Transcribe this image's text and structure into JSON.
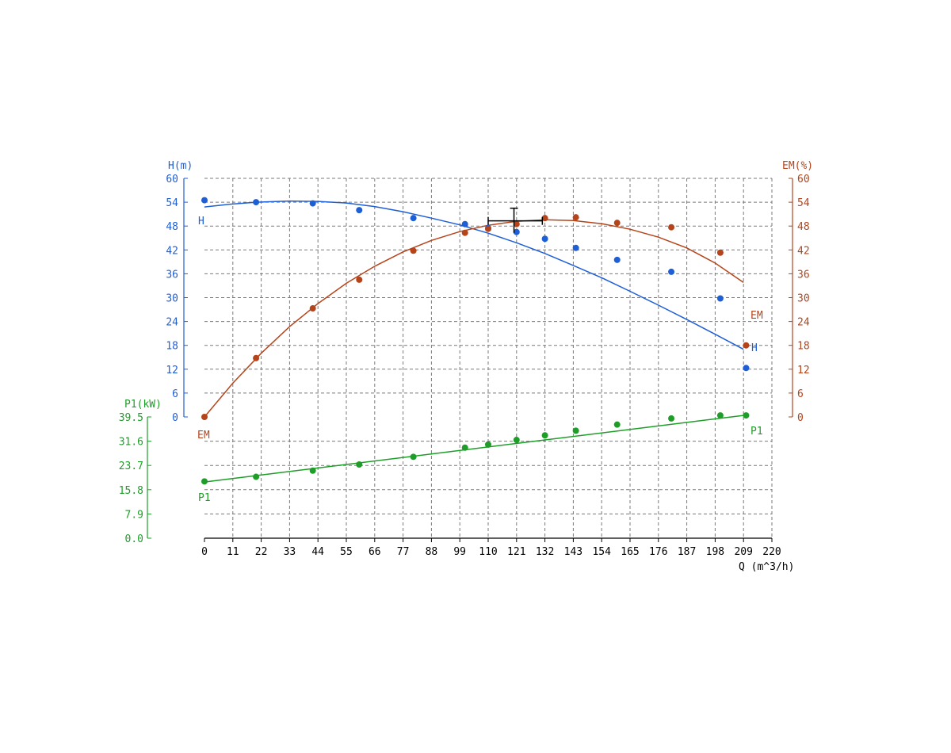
{
  "chart_data": {
    "type": "line",
    "colors": {
      "H": "#1f5fd6",
      "EM": "#b5441a",
      "P1": "#1e9e28",
      "grid": "#7a7a7a",
      "axis": "#000000"
    },
    "axes": {
      "x": {
        "title": "Q (m^3/h)",
        "ticks": [
          "0",
          "11",
          "22",
          "33",
          "44",
          "55",
          "66",
          "77",
          "88",
          "99",
          "110",
          "121",
          "132",
          "143",
          "154",
          "165",
          "176",
          "187",
          "198",
          "209",
          "220"
        ],
        "range": [
          0,
          220
        ]
      },
      "H": {
        "title": "H(m)",
        "ticks": [
          "0",
          "6",
          "12",
          "18",
          "24",
          "30",
          "36",
          "42",
          "48",
          "54",
          "60"
        ],
        "range": [
          0,
          60
        ]
      },
      "EM": {
        "title": "EM(%)",
        "ticks": [
          "0",
          "6",
          "12",
          "18",
          "24",
          "30",
          "36",
          "42",
          "48",
          "54",
          "60"
        ],
        "range": [
          0,
          60
        ]
      },
      "P1": {
        "title": "P1(kW)",
        "ticks": [
          "0.0",
          "7.9",
          "15.8",
          "23.7",
          "31.6",
          "39.5"
        ],
        "range": [
          0,
          39.5
        ]
      }
    },
    "series": [
      {
        "name": "H",
        "points": [
          [
            0,
            54.5
          ],
          [
            20,
            54
          ],
          [
            42,
            53.7
          ],
          [
            60,
            52
          ],
          [
            81,
            50
          ],
          [
            101,
            48.5
          ],
          [
            110,
            47.5
          ],
          [
            121,
            46.5
          ],
          [
            132,
            44.8
          ],
          [
            144,
            42.5
          ],
          [
            160,
            39.5
          ],
          [
            181,
            36.5
          ],
          [
            200,
            29.8
          ],
          [
            210,
            12.3
          ]
        ],
        "curve": [
          [
            0,
            52.8
          ],
          [
            10,
            53.5
          ],
          [
            20,
            54
          ],
          [
            33,
            54.3
          ],
          [
            44,
            54.2
          ],
          [
            55,
            53.8
          ],
          [
            66,
            52.9
          ],
          [
            77,
            51.6
          ],
          [
            88,
            50
          ],
          [
            99,
            48.3
          ],
          [
            110,
            46.2
          ],
          [
            121,
            43.8
          ],
          [
            132,
            41.1
          ],
          [
            143,
            38.1
          ],
          [
            154,
            35
          ],
          [
            165,
            31.6
          ],
          [
            176,
            28.1
          ],
          [
            187,
            24.5
          ],
          [
            198,
            20.8
          ],
          [
            209,
            17
          ]
        ],
        "curve_label": "H",
        "start_label": "H"
      },
      {
        "name": "EM",
        "points": [
          [
            0,
            0
          ],
          [
            20,
            14.8
          ],
          [
            42,
            27.3
          ],
          [
            60,
            34.5
          ],
          [
            81,
            41.8
          ],
          [
            101,
            46.3
          ],
          [
            110,
            47.3
          ],
          [
            121,
            48.5
          ],
          [
            132,
            50
          ],
          [
            144,
            50.2
          ],
          [
            160,
            48.8
          ],
          [
            181,
            47.7
          ],
          [
            200,
            41.3
          ],
          [
            210,
            18
          ]
        ],
        "curve": [
          [
            0,
            0
          ],
          [
            11,
            8.5
          ],
          [
            22,
            16
          ],
          [
            33,
            22.7
          ],
          [
            44,
            28.5
          ],
          [
            55,
            33.6
          ],
          [
            66,
            37.9
          ],
          [
            77,
            41.5
          ],
          [
            88,
            44.4
          ],
          [
            99,
            46.6
          ],
          [
            110,
            48.2
          ],
          [
            121,
            49.2
          ],
          [
            132,
            49.6
          ],
          [
            143,
            49.4
          ],
          [
            154,
            48.6
          ],
          [
            165,
            47.2
          ],
          [
            176,
            45.2
          ],
          [
            187,
            42.5
          ],
          [
            198,
            38.7
          ],
          [
            209,
            33.8
          ]
        ],
        "curve_label": "EM",
        "start_label": "EM"
      },
      {
        "name": "P1",
        "points": [
          [
            0,
            18.5
          ],
          [
            20,
            20
          ],
          [
            42,
            22
          ],
          [
            60,
            24
          ],
          [
            81,
            26.5
          ],
          [
            101,
            29.5
          ],
          [
            110,
            30.5
          ],
          [
            121,
            32
          ],
          [
            132,
            33.5
          ],
          [
            144,
            35
          ],
          [
            160,
            37
          ],
          [
            181,
            39
          ],
          [
            200,
            40
          ],
          [
            210,
            40
          ]
        ],
        "curve": [
          [
            0,
            18.3
          ],
          [
            209,
            40
          ]
        ],
        "curve_label": "P1",
        "start_label": "P1"
      }
    ],
    "operating_point": {
      "q": 120,
      "h": 49.5,
      "range_low": 110,
      "range_high": 131
    }
  }
}
